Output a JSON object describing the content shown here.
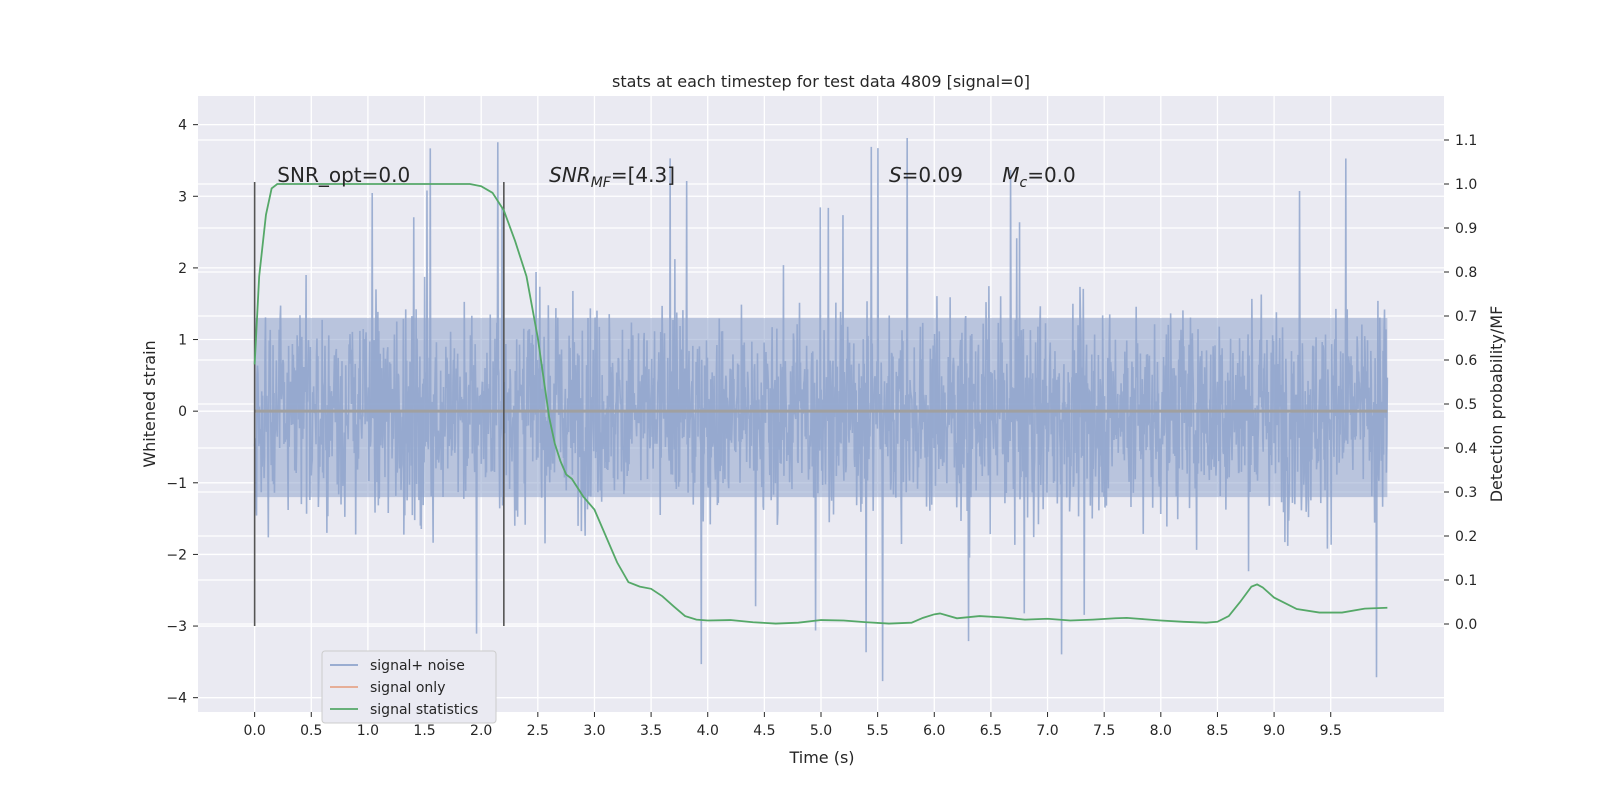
{
  "chart_data": {
    "type": "line",
    "title": "stats at each timestep for test data 4809 [signal=0]",
    "xlabel": "Time (s)",
    "ylabel": "Whitened strain",
    "y2label": "Detection probability/MF",
    "xlim": [
      -0.5,
      10.5
    ],
    "ylim": [
      -4.2,
      4.4
    ],
    "y2lim": [
      -0.2,
      1.2
    ],
    "x_ticks": [
      "0.0",
      "0.5",
      "1.0",
      "1.5",
      "2.0",
      "2.5",
      "3.0",
      "3.5",
      "4.0",
      "4.5",
      "5.0",
      "5.5",
      "6.0",
      "6.5",
      "7.0",
      "7.5",
      "8.0",
      "8.5",
      "9.0",
      "9.5"
    ],
    "y_ticks": [
      "4",
      "3",
      "2",
      "1",
      "0",
      "−1",
      "−2",
      "−3",
      "−4"
    ],
    "y2_ticks": [
      "1.1",
      "1.0",
      "0.9",
      "0.8",
      "0.7",
      "0.6",
      "0.5",
      "0.4",
      "0.3",
      "0.2",
      "0.1",
      "0.0"
    ],
    "grid": true,
    "legend_position": "lower-left",
    "series": [
      {
        "name": "signal+ noise",
        "color": "#8fa4cc",
        "axis": "left",
        "x_range": [
          0.0,
          10.0
        ],
        "typical_band": [
          -1.2,
          1.3
        ],
        "peak_min": -3.85,
        "peak_max": 4.05
      },
      {
        "name": "signal only",
        "color": "#e6a58a",
        "axis": "left",
        "values": "0 everywhere"
      },
      {
        "name": "signal statistics",
        "color": "#55a868",
        "axis": "right",
        "x": [
          0.0,
          0.04,
          0.1,
          0.15,
          0.2,
          0.4,
          0.8,
          1.2,
          1.6,
          1.9,
          2.0,
          2.1,
          2.2,
          2.3,
          2.4,
          2.5,
          2.55,
          2.6,
          2.65,
          2.7,
          2.75,
          2.8,
          2.9,
          3.0,
          3.1,
          3.2,
          3.3,
          3.4,
          3.5,
          3.6,
          3.7,
          3.8,
          3.9,
          4.0,
          4.2,
          4.4,
          4.6,
          4.8,
          5.0,
          5.2,
          5.4,
          5.6,
          5.8,
          5.9,
          6.0,
          6.05,
          6.2,
          6.4,
          6.6,
          6.8,
          7.0,
          7.2,
          7.4,
          7.6,
          7.7,
          7.8,
          8.0,
          8.2,
          8.4,
          8.5,
          8.6,
          8.7,
          8.8,
          8.85,
          8.9,
          9.0,
          9.2,
          9.4,
          9.6,
          9.8,
          10.0
        ],
        "values": [
          0.59,
          0.79,
          0.93,
          0.99,
          1.0,
          1.0,
          1.0,
          1.0,
          1.0,
          1.0,
          0.995,
          0.98,
          0.94,
          0.87,
          0.79,
          0.65,
          0.56,
          0.47,
          0.41,
          0.37,
          0.34,
          0.33,
          0.29,
          0.26,
          0.2,
          0.14,
          0.095,
          0.085,
          0.08,
          0.063,
          0.04,
          0.018,
          0.01,
          0.008,
          0.009,
          0.004,
          0.001,
          0.003,
          0.009,
          0.008,
          0.004,
          0.001,
          0.003,
          0.014,
          0.022,
          0.024,
          0.013,
          0.018,
          0.015,
          0.01,
          0.012,
          0.008,
          0.01,
          0.013,
          0.014,
          0.012,
          0.008,
          0.005,
          0.003,
          0.005,
          0.018,
          0.05,
          0.085,
          0.09,
          0.083,
          0.06,
          0.034,
          0.026,
          0.026,
          0.035,
          0.037
        ]
      }
    ],
    "vlines": [
      0.0,
      2.2
    ],
    "vline_y_range": [
      -3.0,
      3.2
    ],
    "annotations": [
      {
        "text": "SNR_opt=0.0",
        "x": 0.2,
        "y": 3.2
      },
      {
        "text": "SNR",
        "sub": "MF",
        "suffix": "=[4.3]",
        "x": 2.6,
        "y": 3.2,
        "italic": true
      },
      {
        "text": "S",
        "suffix": "=0.09",
        "x": 5.6,
        "y": 3.2,
        "italic": true
      },
      {
        "text": "M",
        "sub": "c",
        "suffix": "=0.0",
        "x": 6.6,
        "y": 3.2,
        "italic": true
      }
    ],
    "colors": {
      "axes_bg": "#eaeaf2",
      "grid": "#ffffff",
      "vline": "#555555"
    }
  }
}
